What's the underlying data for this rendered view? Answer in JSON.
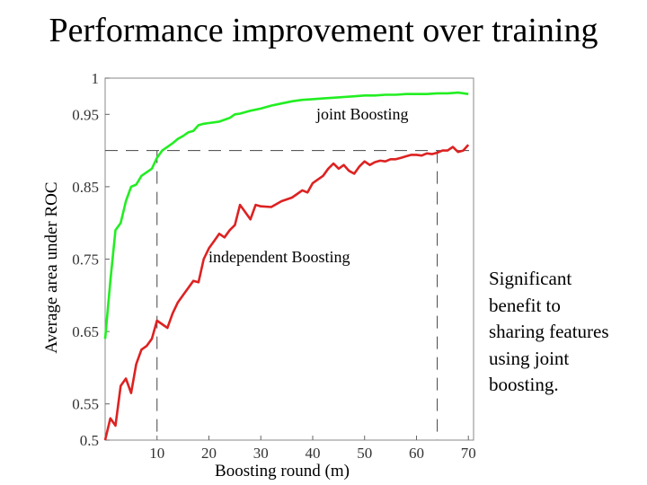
{
  "slide": {
    "title": "Performance improvement over training",
    "caption_lines": [
      "Significant",
      "benefit to",
      "sharing features",
      "using joint",
      "boosting."
    ]
  },
  "chart_data": {
    "type": "line",
    "xlabel": "Boosting round (m)",
    "ylabel": "Average area under ROC",
    "xlim": [
      0,
      71
    ],
    "ylim": [
      0.5,
      1.0
    ],
    "x_ticks": [
      10,
      20,
      30,
      40,
      50,
      60,
      70
    ],
    "y_ticks": [
      0.5,
      0.55,
      0.65,
      0.75,
      0.85,
      0.95,
      1
    ],
    "y_tick_labels": [
      "0.5",
      "0.55",
      "0.65",
      "0.75",
      "0.85",
      "0.95",
      "1"
    ],
    "grid": false,
    "reference_lines": {
      "horizontal_y": 0.9,
      "vertical_x": [
        10,
        64
      ]
    },
    "series": [
      {
        "name": "joint Boosting",
        "color": "#22ee22",
        "x": [
          0,
          1,
          2,
          3,
          4,
          5,
          6,
          7,
          8,
          9,
          10,
          11,
          12,
          13,
          14,
          15,
          16,
          17,
          18,
          19,
          20,
          22,
          24,
          25,
          26,
          28,
          30,
          32,
          34,
          36,
          38,
          40,
          42,
          44,
          46,
          48,
          50,
          52,
          54,
          56,
          58,
          60,
          62,
          64,
          66,
          68,
          70
        ],
        "y": [
          0.64,
          0.72,
          0.79,
          0.8,
          0.83,
          0.85,
          0.853,
          0.865,
          0.87,
          0.875,
          0.89,
          0.9,
          0.905,
          0.91,
          0.916,
          0.92,
          0.925,
          0.927,
          0.935,
          0.937,
          0.938,
          0.94,
          0.945,
          0.95,
          0.951,
          0.955,
          0.958,
          0.962,
          0.965,
          0.968,
          0.97,
          0.971,
          0.972,
          0.973,
          0.974,
          0.975,
          0.976,
          0.976,
          0.977,
          0.977,
          0.978,
          0.978,
          0.978,
          0.979,
          0.979,
          0.98,
          0.978
        ]
      },
      {
        "name": "independent Boosting",
        "color": "#dd2222",
        "x": [
          0,
          1,
          2,
          3,
          4,
          5,
          6,
          7,
          8,
          9,
          10,
          11,
          12,
          13,
          14,
          15,
          16,
          17,
          18,
          19,
          20,
          21,
          22,
          23,
          24,
          25,
          26,
          27,
          28,
          29,
          30,
          32,
          34,
          36,
          37,
          38,
          39,
          40,
          41,
          42,
          43,
          44,
          45,
          46,
          47,
          48,
          49,
          50,
          51,
          52,
          53,
          54,
          55,
          56,
          57,
          58,
          59,
          60,
          61,
          62,
          63,
          64,
          65,
          66,
          67,
          68,
          69,
          70
        ],
        "y": [
          0.5,
          0.53,
          0.52,
          0.575,
          0.585,
          0.565,
          0.605,
          0.625,
          0.63,
          0.64,
          0.665,
          0.66,
          0.655,
          0.675,
          0.69,
          0.7,
          0.71,
          0.72,
          0.718,
          0.75,
          0.765,
          0.775,
          0.785,
          0.78,
          0.79,
          0.797,
          0.825,
          0.815,
          0.805,
          0.825,
          0.823,
          0.822,
          0.83,
          0.835,
          0.84,
          0.845,
          0.842,
          0.855,
          0.86,
          0.865,
          0.875,
          0.882,
          0.875,
          0.88,
          0.872,
          0.868,
          0.878,
          0.885,
          0.88,
          0.884,
          0.886,
          0.885,
          0.888,
          0.888,
          0.89,
          0.892,
          0.894,
          0.894,
          0.893,
          0.896,
          0.895,
          0.897,
          0.9,
          0.9,
          0.905,
          0.898,
          0.9,
          0.908
        ]
      }
    ]
  }
}
